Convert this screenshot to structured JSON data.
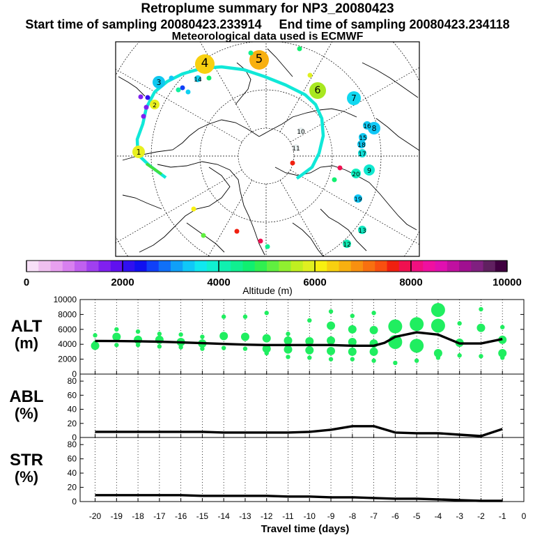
{
  "header": {
    "title": "Retroplume summary for NP3_20080423",
    "sampling_line": "Start time of sampling 20080423.233914     End time of sampling 20080423.234118",
    "met_line": "Meteorological data used is ECMWF"
  },
  "colorbar": {
    "label": "Altitude (m)",
    "tick_labels": [
      "0",
      "2000",
      "4000",
      "6000",
      "8000",
      "10000"
    ],
    "colors": [
      "#f8e0f8",
      "#f0c0f0",
      "#e8a0f0",
      "#d880f0",
      "#c060f0",
      "#a040f0",
      "#8020f0",
      "#6010f0",
      "#3010f0",
      "#1010f0",
      "#1040f8",
      "#1070f8",
      "#10a0f8",
      "#10c8f8",
      "#10e8f0",
      "#10f0d0",
      "#10f0b0",
      "#10f090",
      "#10f070",
      "#30f050",
      "#60f040",
      "#90f030",
      "#c0f020",
      "#e0f020",
      "#f8f010",
      "#f8d010",
      "#f8b010",
      "#f89010",
      "#f87010",
      "#f85010",
      "#f02010",
      "#f01050",
      "#f01080",
      "#f010a0",
      "#e010b0",
      "#c010a0",
      "#a01090",
      "#802080",
      "#602060",
      "#400040"
    ]
  },
  "map": {
    "plume_numbers": [
      "1",
      "2",
      "3",
      "4",
      "5",
      "6",
      "7",
      "8",
      "9",
      "10",
      "11",
      "12",
      "13",
      "14",
      "15",
      "16",
      "17",
      "18",
      "19",
      "20"
    ],
    "trajectory_color": "#10e8d8"
  },
  "chart_data": [
    {
      "type": "line",
      "panel": "ALT",
      "ylabel_line1": "ALT",
      "ylabel_line2": "(m)",
      "xlabel": "Travel time (days)",
      "x_ticks": [
        "-20",
        "-19",
        "-18",
        "-17",
        "-16",
        "-15",
        "-14",
        "-13",
        "-12",
        "-11",
        "-10",
        "-9",
        "-8",
        "-7",
        "-6",
        "-5",
        "-4",
        "-3",
        "-2",
        "-1",
        "0"
      ],
      "ylim": [
        0,
        10000
      ],
      "y_ticks": [
        "0",
        "2000",
        "4000",
        "6000",
        "8000",
        "10000"
      ],
      "line_color": "#000000",
      "point_color": "#20ee60",
      "series": [
        {
          "name": "median altitude",
          "x": [
            -20,
            -19,
            -18,
            -17,
            -16,
            -15,
            -14,
            -13,
            -12,
            -11,
            -10,
            -9,
            -8,
            -7,
            -6.5,
            -6,
            -5,
            -4,
            -3,
            -2,
            -1
          ],
          "values": [
            4450,
            4430,
            4400,
            4350,
            4250,
            4150,
            4050,
            3950,
            3900,
            3900,
            3900,
            3900,
            3800,
            3800,
            4200,
            5000,
            5600,
            5300,
            4100,
            4100,
            4700
          ]
        }
      ],
      "clusters": [
        {
          "x": -20,
          "values": [
            4200,
            3800,
            5200
          ]
        },
        {
          "x": -19,
          "values": [
            6000,
            5000,
            3900
          ]
        },
        {
          "x": -18,
          "values": [
            5700,
            4600,
            3900
          ]
        },
        {
          "x": -17,
          "values": [
            5400,
            4600,
            3700
          ]
        },
        {
          "x": -16,
          "values": [
            5300,
            4300,
            3600
          ]
        },
        {
          "x": -15,
          "values": [
            5000,
            4100,
            3400
          ]
        },
        {
          "x": -14,
          "values": [
            7700,
            5100,
            3500
          ]
        },
        {
          "x": -13,
          "values": [
            7700,
            5000,
            3400
          ]
        },
        {
          "x": -12,
          "values": [
            8200,
            4800,
            3400,
            2800
          ]
        },
        {
          "x": -11,
          "values": [
            5400,
            4500,
            3300,
            2300
          ]
        },
        {
          "x": -10,
          "values": [
            7200,
            4400,
            3200,
            2200
          ]
        },
        {
          "x": -9,
          "values": [
            8400,
            6500,
            4500,
            3100,
            2000
          ]
        },
        {
          "x": -8,
          "values": [
            7800,
            6000,
            4300,
            3000,
            2000
          ]
        },
        {
          "x": -7,
          "values": [
            8200,
            5900,
            4100,
            3000,
            1800
          ]
        },
        {
          "x": -6,
          "values": [
            6400,
            4300,
            1500
          ]
        },
        {
          "x": -5,
          "values": [
            6700,
            3800,
            1800
          ]
        },
        {
          "x": -4,
          "values": [
            8600,
            6500,
            2800,
            2200
          ]
        },
        {
          "x": -3,
          "values": [
            6800,
            4200,
            2500
          ]
        },
        {
          "x": -2,
          "values": [
            8700,
            6200,
            2400
          ]
        },
        {
          "x": -1,
          "values": [
            6300,
            4600,
            2800,
            2200
          ]
        }
      ]
    },
    {
      "type": "line",
      "panel": "ABL",
      "ylabel_line1": "ABL",
      "ylabel_line2": "(%)",
      "x": [
        -20,
        -19,
        -18,
        -17,
        -16,
        -15,
        -14,
        -13,
        -12,
        -11,
        -10,
        -9,
        -8,
        -7,
        -6,
        -5,
        -4,
        -3,
        -2,
        -1
      ],
      "ylim": [
        0,
        90
      ],
      "y_ticks": [
        "0",
        "20",
        "40",
        "60",
        "80"
      ],
      "series": [
        {
          "name": "ABL fraction",
          "values": [
            8,
            8,
            8,
            8,
            8,
            8,
            7,
            7,
            7,
            7,
            8,
            11,
            16,
            16,
            7,
            6,
            6,
            4,
            2,
            12
          ]
        }
      ]
    },
    {
      "type": "line",
      "panel": "STR",
      "ylabel_line1": "STR",
      "ylabel_line2": "(%)",
      "x": [
        -20,
        -19,
        -18,
        -17,
        -16,
        -15,
        -14,
        -13,
        -12,
        -11,
        -10,
        -9,
        -8,
        -7,
        -6,
        -5,
        -4,
        -3,
        -2,
        -1
      ],
      "ylim": [
        0,
        90
      ],
      "y_ticks": [
        "0",
        "20",
        "40",
        "60",
        "80"
      ],
      "series": [
        {
          "name": "STR fraction",
          "values": [
            9,
            9,
            9,
            9,
            9,
            8,
            8,
            8,
            8,
            7,
            7,
            6,
            6,
            5,
            4,
            4,
            3,
            2,
            1,
            1
          ]
        }
      ]
    }
  ]
}
